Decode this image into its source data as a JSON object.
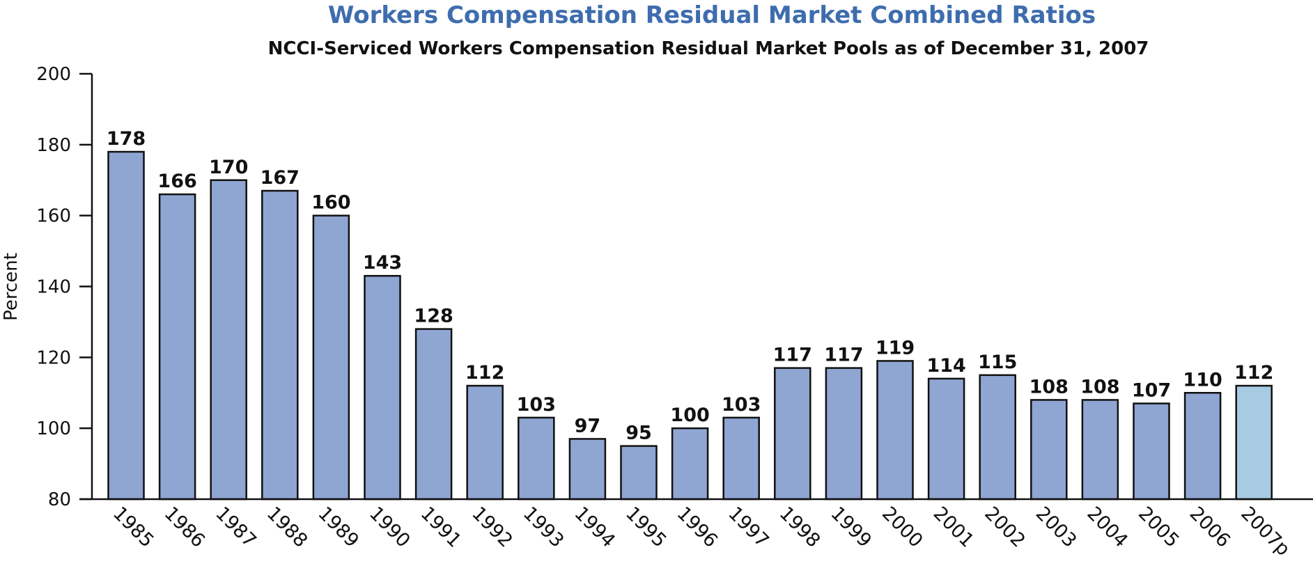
{
  "chart_data": {
    "type": "bar",
    "title": "Workers Compensation Residual Market Combined Ratios",
    "subtitle": "NCCI-Serviced Workers Compensation Residual Market Pools as of December 31, 2007",
    "xlabel": "",
    "ylabel": "Percent",
    "ylim": [
      80,
      200
    ],
    "yticks": [
      80,
      100,
      120,
      140,
      160,
      180,
      200
    ],
    "grid": false,
    "categories": [
      "1985",
      "1986",
      "1987",
      "1988",
      "1989",
      "1990",
      "1991",
      "1992",
      "1993",
      "1994",
      "1995",
      "1996",
      "1997",
      "1998",
      "1999",
      "2000",
      "2001",
      "2002",
      "2003",
      "2004",
      "2005",
      "2006",
      "2007p"
    ],
    "values": [
      178,
      166,
      170,
      167,
      160,
      143,
      128,
      112,
      103,
      97,
      95,
      100,
      103,
      117,
      117,
      119,
      114,
      115,
      108,
      108,
      107,
      110,
      112
    ],
    "colors": {
      "bar": "#8fa5d2",
      "highlight_bar": "#a8cbe4",
      "bar_outline": "#111111",
      "title": "#3e6dae"
    },
    "highlight_category": "2007p"
  }
}
